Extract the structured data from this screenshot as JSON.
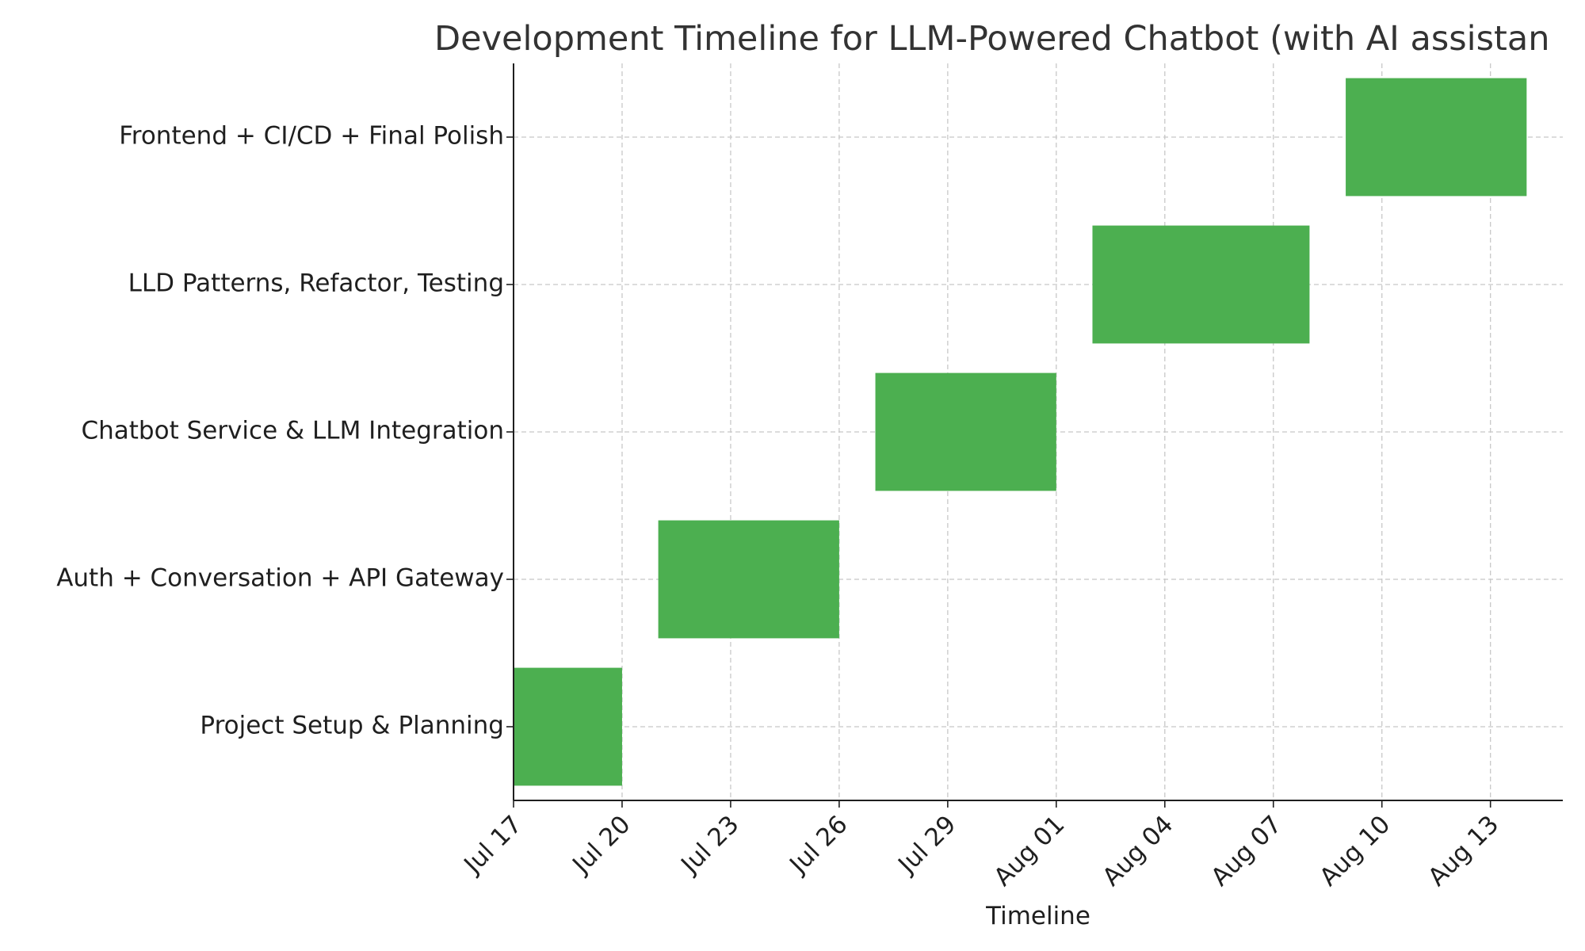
{
  "chart_data": {
    "type": "gantt",
    "title": "Development Timeline for LLM-Powered Chatbot (with AI assistan",
    "xlabel": "Timeline",
    "ylabel": "",
    "grid": true,
    "bar_color": "#4caf50",
    "x_ticks": [
      "2025-07-17",
      "2025-07-20",
      "2025-07-23",
      "2025-07-26",
      "2025-07-29",
      "2025-08-01",
      "2025-08-04",
      "2025-08-07",
      "2025-08-10",
      "2025-08-13"
    ],
    "x_tick_labels": [
      "Jul 17",
      "Jul 20",
      "Jul 23",
      "Jul 26",
      "Jul 29",
      "Aug 01",
      "Aug 04",
      "Aug 07",
      "Aug 10",
      "Aug 13"
    ],
    "xlim": [
      "2025-07-17",
      "2025-08-15"
    ],
    "tasks": [
      {
        "label": "Project Setup & Planning",
        "start": "2025-07-17",
        "end": "2025-07-20"
      },
      {
        "label": "Auth + Conversation + API Gateway",
        "start": "2025-07-21",
        "end": "2025-07-26"
      },
      {
        "label": "Chatbot Service & LLM Integration",
        "start": "2025-07-27",
        "end": "2025-08-01"
      },
      {
        "label": "LLD Patterns, Refactor, Testing",
        "start": "2025-08-02",
        "end": "2025-08-08"
      },
      {
        "label": "Frontend + CI/CD + Final Polish",
        "start": "2025-08-09",
        "end": "2025-08-14"
      }
    ]
  }
}
